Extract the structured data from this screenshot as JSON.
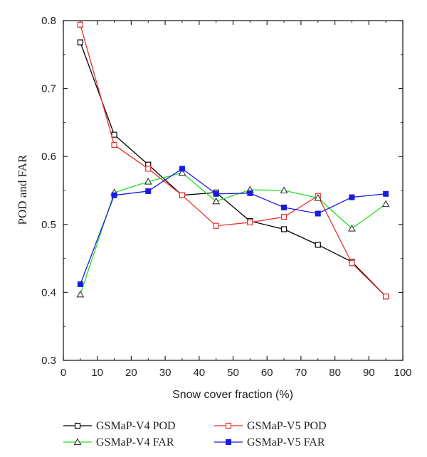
{
  "chart_data": {
    "type": "line",
    "xlabel": "Snow cover fraction (%)",
    "ylabel": "POD and FAR",
    "xlim": [
      0,
      100
    ],
    "ylim": [
      0.3,
      0.8
    ],
    "xticks": [
      0,
      10,
      20,
      30,
      40,
      50,
      60,
      70,
      80,
      90,
      100
    ],
    "yticks": [
      0.3,
      0.4,
      0.5,
      0.6,
      0.7,
      0.8
    ],
    "ytick_labels": [
      "0.3",
      "0.4",
      "0.5",
      "0.6",
      "0.7",
      "0.8"
    ],
    "grid": false,
    "legend_position": "bottom",
    "x": [
      5,
      15,
      25,
      35,
      45,
      55,
      65,
      75,
      85,
      95
    ],
    "series": [
      {
        "name": "GSMaP-V4 POD",
        "color": "#000000",
        "marker": "open-square",
        "values": [
          0.768,
          0.632,
          0.588,
          0.543,
          0.547,
          0.505,
          0.493,
          0.47,
          0.445,
          0.394
        ]
      },
      {
        "name": "GSMaP-V5 POD",
        "color": "#e8302a",
        "marker": "open-square",
        "values": [
          0.794,
          0.617,
          0.582,
          0.543,
          0.498,
          0.503,
          0.511,
          0.542,
          0.443,
          0.394
        ]
      },
      {
        "name": "GSMaP-V4 FAR",
        "color": "#22e022",
        "marker": "open-triangle",
        "values": [
          0.397,
          0.547,
          0.563,
          0.576,
          0.534,
          0.551,
          0.55,
          0.539,
          0.494,
          0.53
        ]
      },
      {
        "name": "GSMaP-V5 FAR",
        "color": "#1a1ae0",
        "marker": "filled-square",
        "values": [
          0.412,
          0.543,
          0.549,
          0.582,
          0.545,
          0.546,
          0.525,
          0.516,
          0.54,
          0.545
        ]
      }
    ]
  }
}
